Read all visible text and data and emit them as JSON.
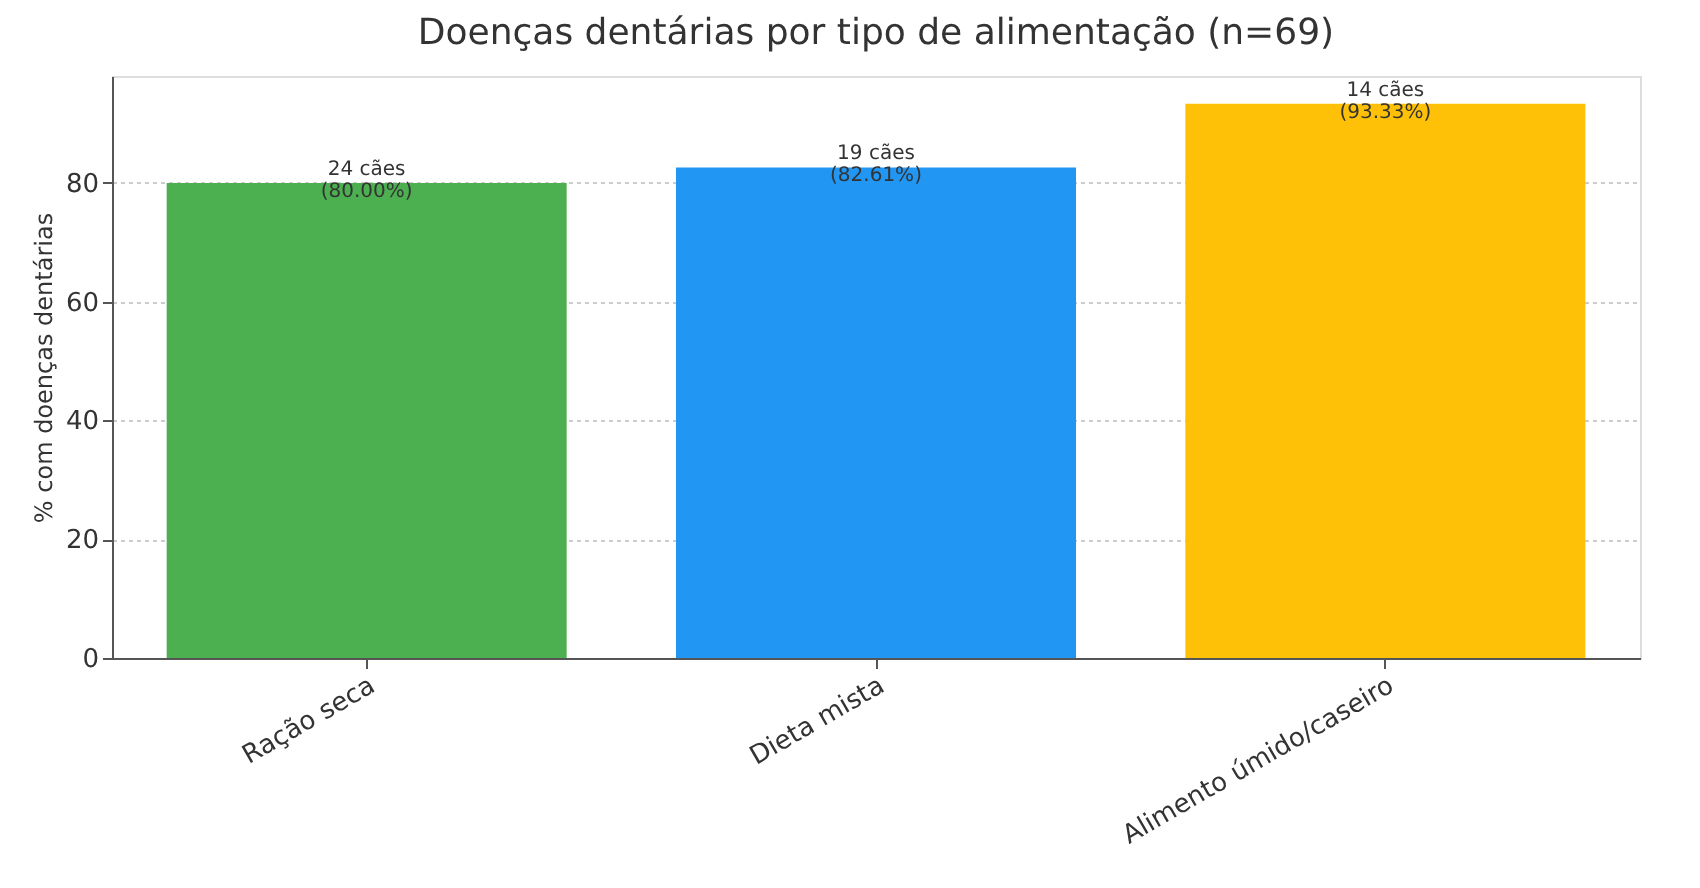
{
  "chart_data": {
    "type": "bar",
    "title": "Doenças dentárias por tipo de alimentação (n=69)",
    "ylabel": "% com doenças dentárias",
    "categories": [
      "Ração seca",
      "Dieta mista",
      "Alimento úmido/caseiro"
    ],
    "values": [
      80.0,
      82.61,
      93.33
    ],
    "colors": [
      "#4caf50",
      "#2196f3",
      "#ffc107"
    ],
    "value_labels": [
      "24 cães\n(80.00%)",
      "19 cães\n(82.61%)",
      "14 cães\n(93.33%)"
    ],
    "ylim": [
      0,
      98
    ],
    "yticks": [
      0,
      20,
      40,
      60,
      80
    ],
    "grid": "y"
  }
}
